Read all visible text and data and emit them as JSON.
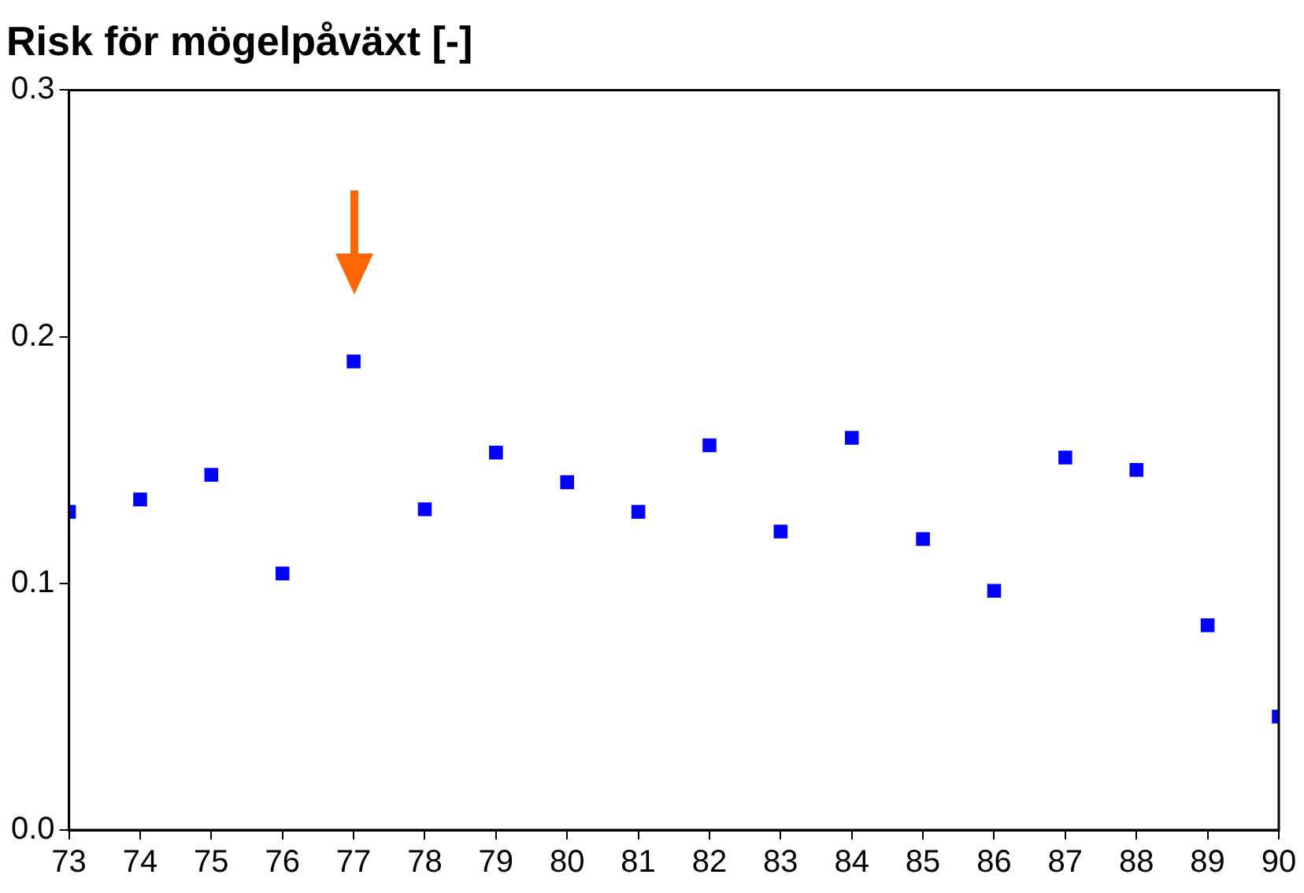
{
  "chart_data": {
    "type": "scatter",
    "title": "Risk för mögelpåväxt [-]",
    "x": [
      73,
      74,
      75,
      76,
      77,
      78,
      79,
      80,
      81,
      82,
      83,
      84,
      85,
      86,
      87,
      88,
      89,
      90
    ],
    "series": [
      {
        "color": "#0000ff",
        "values": [
          0.129,
          0.134,
          0.144,
          0.104,
          0.19,
          0.13,
          0.153,
          0.141,
          0.129,
          0.156,
          0.121,
          0.159,
          0.118,
          0.097,
          0.151,
          0.146,
          0.083,
          0.046
        ]
      }
    ],
    "xlim": [
      73,
      90
    ],
    "xticks": [
      73,
      74,
      75,
      76,
      77,
      78,
      79,
      80,
      81,
      82,
      83,
      84,
      85,
      86,
      87,
      88,
      89,
      90
    ],
    "ylim": [
      0,
      0.3
    ],
    "yticks": [
      {
        "value": 0,
        "label": "0.0"
      },
      {
        "value": 0.1,
        "label": "0.1"
      },
      {
        "value": 0.2,
        "label": "0.2"
      },
      {
        "value": 0.3,
        "label": "0.3"
      }
    ],
    "grid": false,
    "legend": false,
    "marker": "square"
  }
}
